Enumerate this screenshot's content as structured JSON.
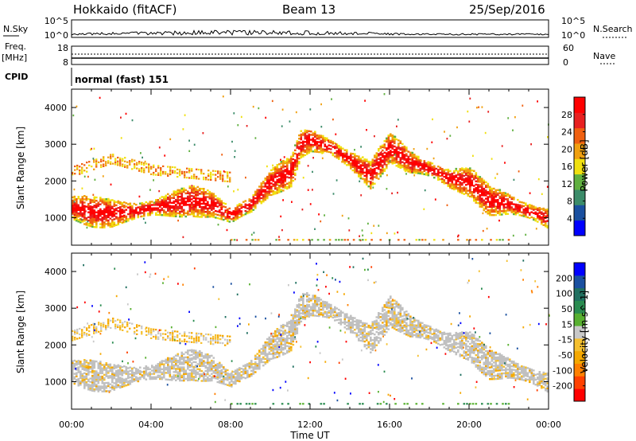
{
  "header": {
    "station": "Hokkaido (fitACF)",
    "beam": "Beam 13",
    "date": "25/Sep/2016"
  },
  "side_labels": {
    "nsky": "N.Sky",
    "freq": "Freq.",
    "freq_unit": "[MHz]",
    "cpid": "CPID",
    "nsearch": "N.Search",
    "nave": "Nave"
  },
  "noise_axis": {
    "left": [
      "10^5",
      "10^0"
    ],
    "right": [
      "10^5",
      "10^0"
    ]
  },
  "freq_axis": {
    "left": [
      "18",
      "8"
    ],
    "right": [
      "60",
      "0"
    ]
  },
  "cpid_text": "normal (fast) 151",
  "colors": {
    "power_scale": [
      "#0000ff",
      "#1a50a0",
      "#3c8c6a",
      "#60b040",
      "#f0e010",
      "#f0a010",
      "#f06010",
      "#e82020",
      "#ff0000"
    ],
    "velocity_scale": [
      "#ff0000",
      "#ff4000",
      "#ff8000",
      "#f5a800",
      "#f5c030",
      "#c8c8c8",
      "#58b030",
      "#2a8c50",
      "#207060",
      "#1a50a0",
      "#0000ff"
    ],
    "ground_scatter": "#c0c0c0"
  },
  "chart_data": [
    {
      "type": "heatmap",
      "ylabel": "Slant Range [km]",
      "xlabel": "Time UT",
      "x_ticks": [
        "00:00",
        "04:00",
        "08:00",
        "12:00",
        "16:00",
        "20:00",
        "00:00"
      ],
      "y_ticks": [
        "1000",
        "2000",
        "3000",
        "4000"
      ],
      "ylim": [
        250,
        4500
      ],
      "colorbar": {
        "label": "Power [dB]",
        "ticks": [
          "28",
          "24",
          "20",
          "16",
          "12",
          "8",
          "4"
        ],
        "range": [
          0,
          30
        ]
      },
      "series": [
        {
          "values": [
            [
              0,
              1250
            ],
            [
              1,
              1150
            ],
            [
              2,
              1100
            ],
            [
              3,
              1150
            ],
            [
              4,
              1250
            ],
            [
              5,
              1350
            ],
            [
              6,
              1450
            ],
            [
              7,
              1350
            ],
            [
              8,
              1050
            ],
            [
              9,
              1350
            ],
            [
              10,
              1950
            ],
            [
              11,
              2250
            ],
            [
              11.5,
              3000
            ],
            [
              12,
              3100
            ],
            [
              13,
              2900
            ],
            [
              14,
              2550
            ],
            [
              15,
              2150
            ],
            [
              16,
              2900
            ],
            [
              17,
              2500
            ],
            [
              18,
              2300
            ],
            [
              19,
              2050
            ],
            [
              20,
              1950
            ],
            [
              21,
              1450
            ],
            [
              22,
              1350
            ],
            [
              23,
              1150
            ],
            [
              24,
              950
            ]
          ]
        },
        {
          "values": [
            [
              0,
              2250
            ],
            [
              2,
              2600
            ],
            [
              4,
              2300
            ],
            [
              6,
              2200
            ],
            [
              8,
              2100
            ]
          ]
        }
      ]
    },
    {
      "type": "heatmap",
      "ylabel": "Slant Range [km]",
      "xlabel": "Time UT",
      "x_ticks": [
        "00:00",
        "04:00",
        "08:00",
        "12:00",
        "16:00",
        "20:00",
        "00:00"
      ],
      "y_ticks": [
        "1000",
        "2000",
        "3000",
        "4000"
      ],
      "ylim": [
        250,
        4500
      ],
      "colorbar": {
        "label": "Velocity [m s^-1]",
        "ticks": [
          "200",
          "100",
          "50",
          "15",
          "-15",
          "-50",
          "-100",
          "-200"
        ],
        "range": [
          -250,
          250
        ]
      },
      "series": [
        {
          "values": [
            [
              0,
              1250
            ],
            [
              1,
              1150
            ],
            [
              2,
              1100
            ],
            [
              3,
              1150
            ],
            [
              4,
              1250
            ],
            [
              5,
              1350
            ],
            [
              6,
              1450
            ],
            [
              7,
              1350
            ],
            [
              8,
              1050
            ],
            [
              9,
              1350
            ],
            [
              10,
              1950
            ],
            [
              11,
              2250
            ],
            [
              11.5,
              3000
            ],
            [
              12,
              3100
            ],
            [
              13,
              2900
            ],
            [
              14,
              2550
            ],
            [
              15,
              2150
            ],
            [
              16,
              2900
            ],
            [
              17,
              2500
            ],
            [
              18,
              2300
            ],
            [
              19,
              2050
            ],
            [
              20,
              1950
            ],
            [
              21,
              1450
            ],
            [
              22,
              1350
            ],
            [
              23,
              1150
            ],
            [
              24,
              950
            ]
          ]
        },
        {
          "values": [
            [
              0,
              2250
            ],
            [
              2,
              2600
            ],
            [
              4,
              2300
            ],
            [
              6,
              2200
            ],
            [
              8,
              2100
            ]
          ]
        }
      ]
    }
  ]
}
